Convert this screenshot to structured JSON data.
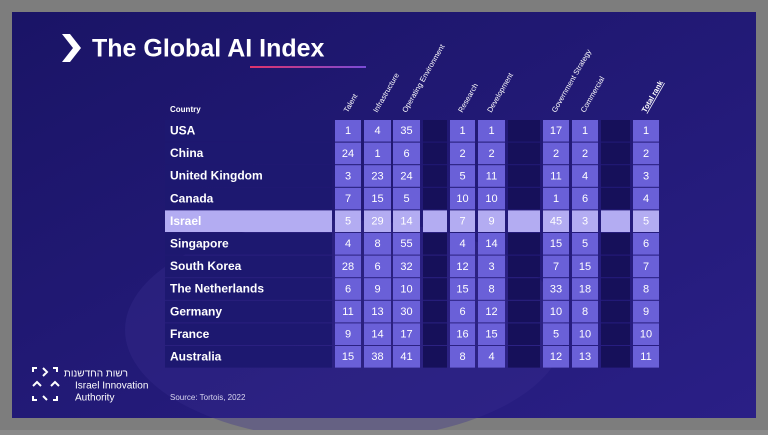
{
  "header": {
    "title": "The Global AI Index"
  },
  "table": {
    "columns": [
      "Country",
      "Talent",
      "Infrastructure",
      "Operating Environment",
      "Research",
      "Development",
      "Government Strategy",
      "Commercial",
      "Total rank"
    ],
    "rows": [
      [
        "USA",
        1,
        4,
        35,
        1,
        1,
        17,
        1,
        1
      ],
      [
        "China",
        24,
        1,
        6,
        2,
        2,
        2,
        2,
        2
      ],
      [
        "United Kingdom",
        3,
        23,
        24,
        5,
        11,
        11,
        4,
        3
      ],
      [
        "Canada",
        7,
        15,
        5,
        10,
        10,
        1,
        6,
        4
      ],
      [
        "Israel",
        5,
        29,
        14,
        7,
        9,
        45,
        3,
        5
      ],
      [
        "Singapore",
        4,
        8,
        55,
        4,
        14,
        15,
        5,
        6
      ],
      [
        "South Korea",
        28,
        6,
        32,
        12,
        3,
        7,
        15,
        7
      ],
      [
        "The Netherlands",
        6,
        9,
        10,
        15,
        8,
        33,
        18,
        8
      ],
      [
        "Germany",
        11,
        13,
        30,
        6,
        12,
        10,
        8,
        9
      ],
      [
        "France",
        9,
        14,
        17,
        16,
        15,
        5,
        10,
        10
      ],
      [
        "Australia",
        15,
        38,
        41,
        8,
        4,
        12,
        13,
        11
      ]
    ]
  },
  "source": "Source: Tortois, 2022",
  "logo": {
    "hebrew": "רשות החדשנות",
    "line1": "Israel Innovation",
    "line2": "Authority"
  }
}
